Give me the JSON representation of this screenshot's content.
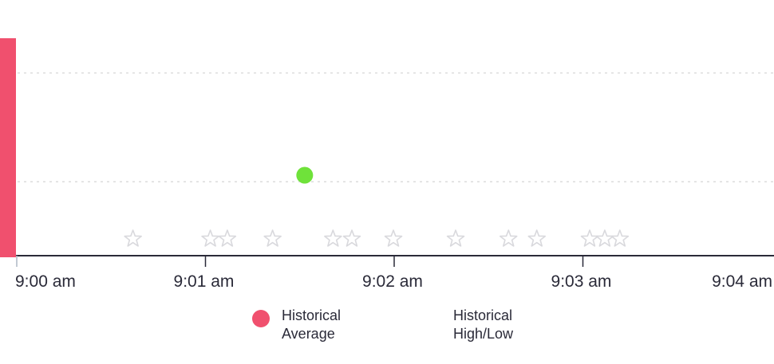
{
  "colors": {
    "average": "#f0506e",
    "point": "#6fe23a",
    "star": "#d9d9dd",
    "axis": "#2a2a38",
    "grid": "#dcdcdc"
  },
  "legend": {
    "average_line1": "Historical",
    "average_line2": "Average",
    "highlow_line1": "Historical",
    "highlow_line2": "High/Low"
  },
  "chart_data": {
    "type": "scatter",
    "x_ticks": [
      "9:00 am",
      "9:01 am",
      "9:02 am",
      "9:03 am",
      "9:04 am"
    ],
    "x_range_minutes": [
      0,
      4
    ],
    "y_range": [
      0,
      1
    ],
    "grid": true,
    "average_bar": {
      "start_minute": 0,
      "value": 1
    },
    "point": {
      "minute": 1.53,
      "value": 0.37
    },
    "star_markers_minutes": [
      0.62,
      1.03,
      1.12,
      1.36,
      1.68,
      1.78,
      2.0,
      2.33,
      2.61,
      2.76,
      3.04,
      3.12,
      3.2
    ],
    "legend_position": "bottom"
  }
}
